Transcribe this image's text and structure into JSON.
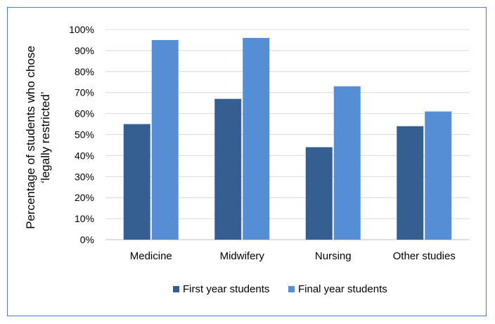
{
  "chart_data": {
    "type": "bar",
    "title": "",
    "xlabel": "",
    "ylabel_lines": [
      "Percentage of students  who chose",
      "‘legally restricted’"
    ],
    "categories": [
      "Medicine",
      "Midwifery",
      "Nursing",
      "Other studies"
    ],
    "series": [
      {
        "name": "First year students",
        "color": "#365f91",
        "values": [
          55,
          67,
          44,
          54
        ]
      },
      {
        "name": "Final year students",
        "color": "#558ed5",
        "values": [
          95,
          96,
          73,
          61
        ]
      }
    ],
    "ylim": [
      0,
      100
    ],
    "yticks": [
      0,
      10,
      20,
      30,
      40,
      50,
      60,
      70,
      80,
      90,
      100
    ],
    "ytick_labels": [
      "0%",
      "10%",
      "20%",
      "30%",
      "40%",
      "50%",
      "60%",
      "70%",
      "80%",
      "90%",
      "100%"
    ],
    "grid": true,
    "legend_position": "bottom"
  },
  "colors": {
    "border": "#4a7ebb",
    "grid": "#d9d9d9",
    "axis": "#bfbfbf"
  }
}
